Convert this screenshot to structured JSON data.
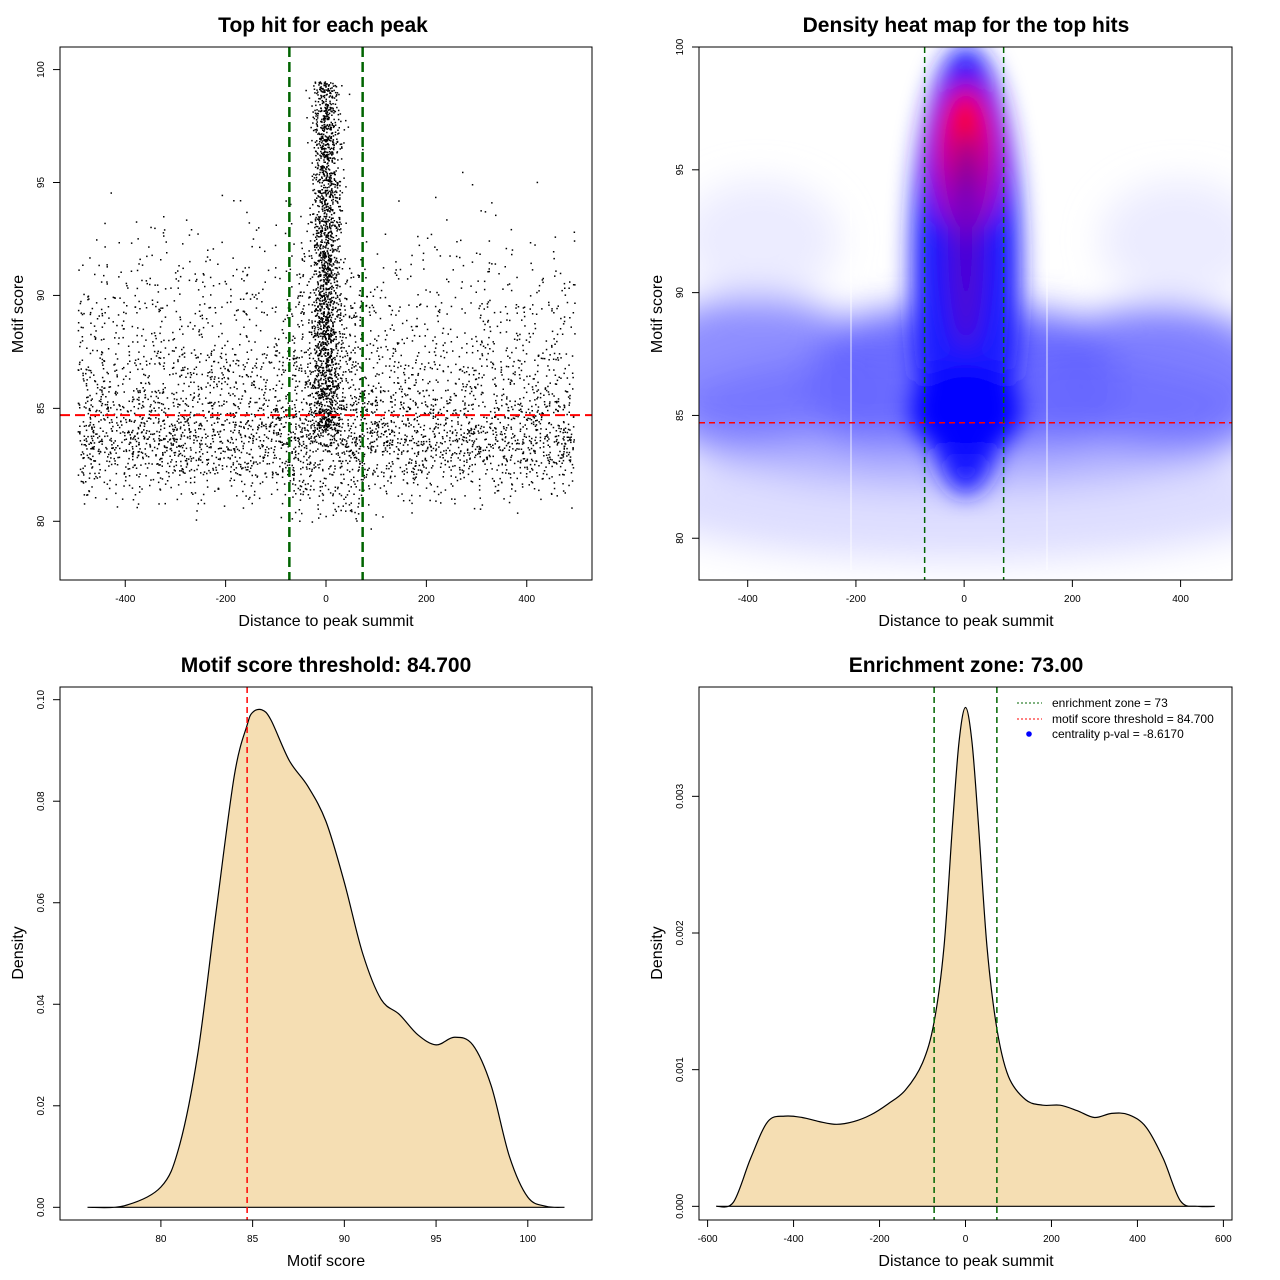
{
  "charts": [
    {
      "id": "p1",
      "title": "Top hit for each peak",
      "xlabel": "Distance to peak summit",
      "ylabel": "Motif score"
    },
    {
      "id": "p2",
      "title": "Density heat map for the top hits",
      "xlabel": "Distance to peak summit",
      "ylabel": "Motif score"
    },
    {
      "id": "p3",
      "title": "Motif score threshold: 84.700",
      "xlabel": "Motif score",
      "ylabel": "Density"
    },
    {
      "id": "p4",
      "title": "Enrichment zone: 73.00",
      "xlabel": "Distance to peak summit",
      "ylabel": "Density",
      "legend": [
        "enrichment zone = 73",
        "motif score threshold = 84.700",
        "centrality p-val = -8.6170"
      ]
    }
  ],
  "chart_data": [
    {
      "type": "scatter",
      "title": "Top hit for each peak",
      "xlabel": "Distance to peak summit",
      "ylabel": "Motif score",
      "xlim": [
        -530,
        530
      ],
      "ylim": [
        77.4,
        101.0
      ],
      "xticks": [
        -400,
        -200,
        0,
        200,
        400
      ],
      "yticks": [
        80,
        85,
        90,
        95,
        100
      ],
      "hline": {
        "y": 84.7,
        "color": "#ff0000",
        "style": "dashed"
      },
      "vlines": [
        {
          "x": -73,
          "color": "#006400"
        },
        {
          "x": 73,
          "color": "#006400"
        }
      ],
      "points_description": "about 6000 points; background uniform over x in [-495, 495] with scores mostly 79-92 (mode ~85); dense central cluster within |x| < 50 extending up to ~99.5"
    },
    {
      "type": "heatmap",
      "title": "Density heat map for the top hits",
      "xlabel": "Distance to peak summit",
      "ylabel": "Motif score",
      "xlim": [
        -490,
        495
      ],
      "ylim": [
        78.3,
        100.0
      ],
      "xticks": [
        -400,
        -200,
        0,
        200,
        400
      ],
      "yticks": [
        80,
        85,
        90,
        95,
        100
      ],
      "color_scale": [
        "#ffffff",
        "#0000ff",
        "#ff0000"
      ],
      "hline": {
        "y": 84.7,
        "color": "#ff0000",
        "style": "dashed"
      },
      "vlines": [
        {
          "x": -73,
          "color": "#006400"
        },
        {
          "x": 73,
          "color": "#006400"
        }
      ],
      "peak": {
        "x": 0,
        "y": 96.5
      }
    },
    {
      "type": "area",
      "title": "Motif score threshold: 84.700",
      "xlabel": "Motif score",
      "ylabel": "Density",
      "xlim": [
        74.5,
        103.5
      ],
      "ylim": [
        -0.0025,
        0.1025
      ],
      "xticks": [
        80,
        85,
        90,
        95,
        100
      ],
      "yticks": [
        "0.00",
        "0.02",
        "0.04",
        "0.06",
        "0.08",
        "0.10"
      ],
      "fill": "#f5deb3",
      "vlines": [
        {
          "x": 84.7,
          "color": "#ff0000"
        }
      ],
      "x": [
        76,
        78,
        80,
        81,
        82,
        83,
        84,
        84.7,
        85,
        85.5,
        86,
        87,
        88,
        89,
        90,
        91,
        92,
        93,
        94,
        95,
        96,
        97,
        98,
        99,
        100,
        101,
        102
      ],
      "y": [
        0.0,
        0.0003,
        0.004,
        0.012,
        0.03,
        0.058,
        0.085,
        0.095,
        0.0975,
        0.098,
        0.096,
        0.088,
        0.083,
        0.076,
        0.064,
        0.05,
        0.041,
        0.038,
        0.034,
        0.032,
        0.0335,
        0.032,
        0.024,
        0.01,
        0.002,
        0.0002,
        0.0
      ]
    },
    {
      "type": "area",
      "title": "Enrichment zone: 73.00",
      "xlabel": "Distance to peak summit",
      "ylabel": "Density",
      "xlim": [
        -620,
        620
      ],
      "ylim": [
        -0.0001,
        0.0038
      ],
      "xticks": [
        -600,
        -400,
        -200,
        0,
        200,
        400,
        600
      ],
      "yticks": [
        "0.000",
        "0.001",
        "0.002",
        "0.003"
      ],
      "fill": "#f5deb3",
      "vlines": [
        {
          "x": -73,
          "color": "#006400"
        },
        {
          "x": 73,
          "color": "#006400"
        }
      ],
      "legend": [
        {
          "label": "enrichment zone = 73",
          "color": "#006400"
        },
        {
          "label": "motif score threshold = 84.700",
          "color": "#ff0000"
        },
        {
          "label": "centrality p-val = -8.6170",
          "color": "#0000ff"
        }
      ],
      "x": [
        -580,
        -540,
        -500,
        -460,
        -420,
        -380,
        -340,
        -300,
        -260,
        -220,
        -180,
        -140,
        -100,
        -73,
        -50,
        -30,
        -15,
        0,
        15,
        30,
        50,
        73,
        100,
        140,
        180,
        220,
        260,
        300,
        340,
        380,
        420,
        460,
        500,
        540,
        580
      ],
      "y": [
        0.0,
        3e-05,
        0.00035,
        0.00062,
        0.00066,
        0.00065,
        0.00062,
        0.0006,
        0.00062,
        0.00067,
        0.00075,
        0.00085,
        0.00105,
        0.00135,
        0.0019,
        0.0028,
        0.0034,
        0.00365,
        0.0034,
        0.0028,
        0.0019,
        0.0013,
        0.00095,
        0.00078,
        0.00074,
        0.00074,
        0.0007,
        0.00065,
        0.00068,
        0.00067,
        0.00058,
        0.00035,
        4e-05,
        0.0,
        0.0
      ]
    }
  ]
}
